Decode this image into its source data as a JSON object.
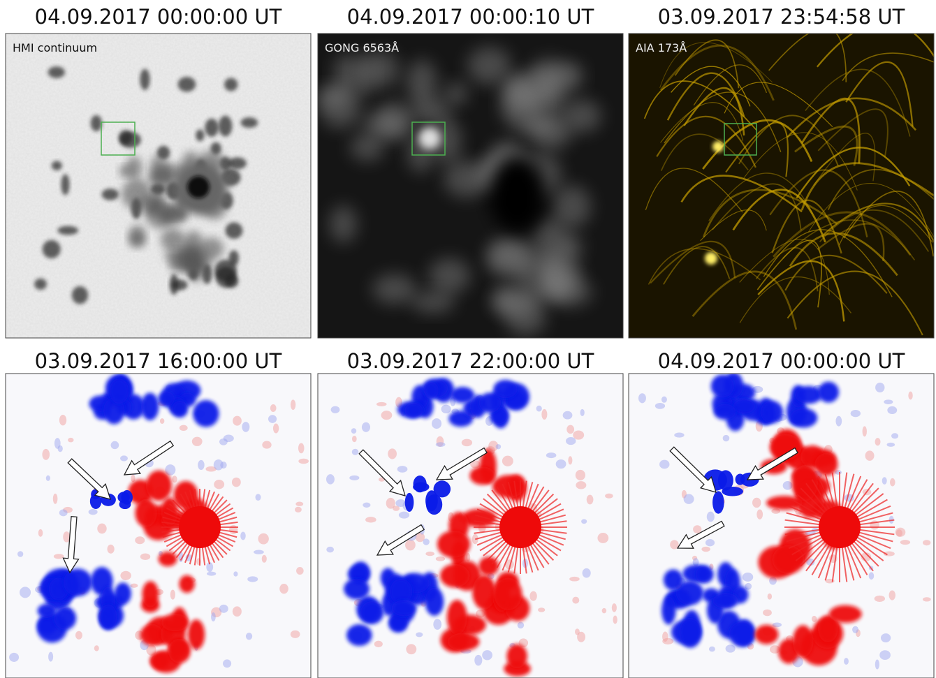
{
  "top_row": [
    {
      "title": "04.09.2017 00:00:00 UT",
      "label": "HMI continuum"
    },
    {
      "title": "04.09.2017 00:00:10 UT",
      "label": "GONG 6563Å"
    },
    {
      "title": "03.09.2017 23:54:58 UT",
      "label": "AIA 173Å"
    }
  ],
  "bottom_row": [
    {
      "title": "03.09.2017 16:00:00 UT"
    },
    {
      "title": "03.09.2017 22:00:00 UT"
    },
    {
      "title": "04.09.2017 00:00:00 UT"
    }
  ]
}
